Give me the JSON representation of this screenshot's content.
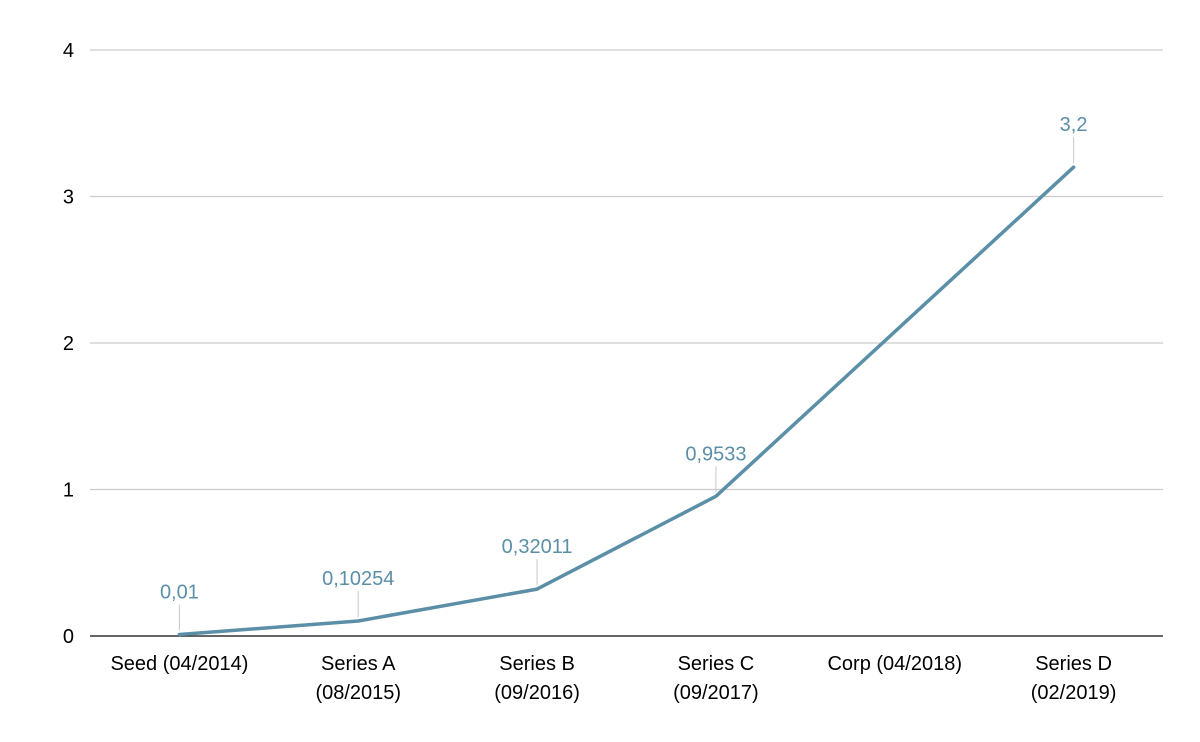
{
  "chart_data": {
    "type": "line",
    "title": "",
    "xlabel": "",
    "ylabel": "",
    "categories": [
      [
        "Seed (04/2014)"
      ],
      [
        "Series A",
        "(08/2015)"
      ],
      [
        "Series B",
        "(09/2016)"
      ],
      [
        "Series C",
        "(09/2017)"
      ],
      [
        "Corp (04/2018)"
      ],
      [
        "Series D",
        "(02/2019)"
      ]
    ],
    "series": [
      {
        "values": [
          0.01,
          0.10254,
          0.32011,
          0.9533,
          null,
          3.2
        ],
        "data_labels": [
          "0,01",
          "0,10254",
          "0,32011",
          "0,9533",
          null,
          "3,2"
        ]
      }
    ],
    "y_ticks": [
      {
        "value": 0,
        "label": "0"
      },
      {
        "value": 1,
        "label": "1"
      },
      {
        "value": 2,
        "label": "2"
      },
      {
        "value": 3,
        "label": "3"
      },
      {
        "value": 4,
        "label": "4"
      }
    ],
    "ylim": [
      0,
      4
    ],
    "grid": true,
    "legend": "none",
    "colors": {
      "line": "#5b8fa8",
      "grid": "#cccccc",
      "axis": "#333333",
      "label_leader": "#d0d0d0"
    }
  }
}
